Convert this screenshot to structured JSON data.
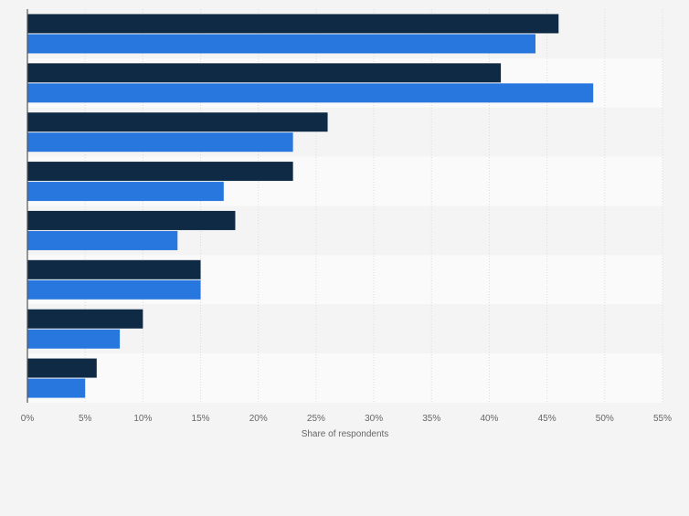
{
  "chart_data": {
    "type": "bar",
    "orientation": "horizontal",
    "categories": [
      "",
      "",
      "",
      "",
      "",
      "",
      "",
      ""
    ],
    "series": [
      {
        "color": "#0f2a45",
        "values": [
          46,
          41,
          26,
          23,
          18,
          15,
          10,
          6
        ]
      },
      {
        "color": "#2877de",
        "values": [
          44,
          49,
          23,
          17,
          13,
          15,
          8,
          5
        ]
      }
    ],
    "xlabel": "Share of respondents",
    "xlim": [
      0,
      55
    ],
    "xticks": [
      0,
      5,
      10,
      15,
      20,
      25,
      30,
      35,
      40,
      45,
      50,
      55
    ],
    "tick_suffix": "%",
    "grid": true
  }
}
